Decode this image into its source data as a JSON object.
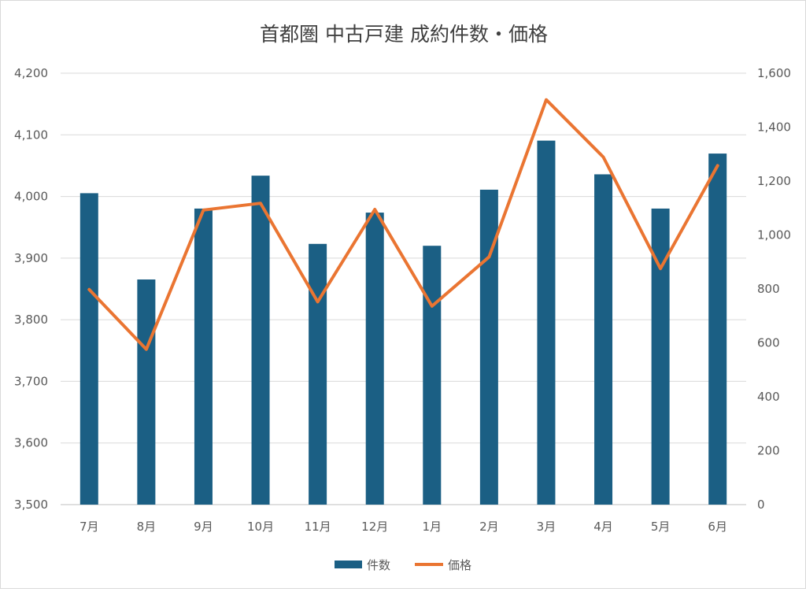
{
  "chart_data": {
    "type": "bar",
    "title": "首都圏 中古戸建 成約件数・価格",
    "categories": [
      "7月",
      "8月",
      "9月",
      "10月",
      "11月",
      "12月",
      "1月",
      "2月",
      "3月",
      "4月",
      "5月",
      "6月"
    ],
    "series": [
      {
        "name": "件数",
        "type": "bar",
        "axis": "right",
        "color": "#1b5f84",
        "values": [
          1155,
          835,
          1098,
          1220,
          967,
          1083,
          960,
          1168,
          1350,
          1225,
          1098,
          1302
        ]
      },
      {
        "name": "価格",
        "type": "line",
        "axis": "left",
        "color": "#ea7532",
        "values": [
          3849,
          3752,
          3978,
          3989,
          3829,
          3979,
          3822,
          3902,
          4157,
          4064,
          3883,
          4050
        ]
      }
    ],
    "y_left": {
      "ylim": [
        3500,
        4200
      ],
      "ticks": [
        "3,500",
        "3,600",
        "3,700",
        "3,800",
        "3,900",
        "4,000",
        "4,100",
        "4,200"
      ]
    },
    "y_right": {
      "ylim": [
        0,
        1600
      ],
      "ticks": [
        "0",
        "200",
        "400",
        "600",
        "800",
        "1,000",
        "1,200",
        "1,400",
        "1,600"
      ]
    },
    "grid": true,
    "legend": {
      "position": "bottom",
      "items": [
        "件数",
        "価格"
      ]
    }
  }
}
